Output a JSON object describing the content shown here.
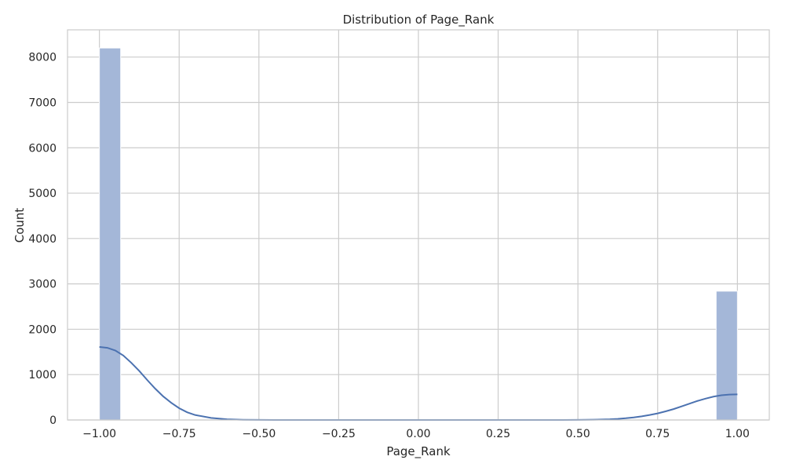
{
  "chart_data": {
    "type": "bar",
    "title": "Distribution of Page_Rank",
    "xlabel": "Page_Rank",
    "ylabel": "Count",
    "xlim": [
      -1.1,
      1.1
    ],
    "ylim": [
      0,
      8600
    ],
    "x_ticks": [
      -1.0,
      -0.75,
      -0.5,
      -0.25,
      0.0,
      0.25,
      0.5,
      0.75,
      1.0
    ],
    "x_tick_labels": [
      "−1.00",
      "−0.75",
      "−0.50",
      "−0.25",
      "0.00",
      "0.25",
      "0.50",
      "0.75",
      "1.00"
    ],
    "y_ticks": [
      0,
      1000,
      2000,
      3000,
      4000,
      5000,
      6000,
      7000,
      8000
    ],
    "y_tick_labels": [
      "0",
      "1000",
      "2000",
      "3000",
      "4000",
      "5000",
      "6000",
      "7000",
      "8000"
    ],
    "bins": [
      {
        "x0": -1.0,
        "x1": -0.9333,
        "count": 8200
      },
      {
        "x0": 0.9333,
        "x1": 1.0,
        "count": 2840
      }
    ],
    "kde": {
      "x": [
        -1.0,
        -0.975,
        -0.95,
        -0.925,
        -0.9,
        -0.875,
        -0.85,
        -0.825,
        -0.8,
        -0.775,
        -0.75,
        -0.725,
        -0.7,
        -0.65,
        -0.6,
        -0.55,
        -0.5,
        -0.45,
        -0.4,
        0.4,
        0.45,
        0.5,
        0.55,
        0.6,
        0.625,
        0.65,
        0.675,
        0.7,
        0.725,
        0.75,
        0.775,
        0.8,
        0.825,
        0.85,
        0.875,
        0.9,
        0.925,
        0.95,
        0.975,
        1.0
      ],
      "y": [
        1610,
        1590,
        1530,
        1420,
        1260,
        1080,
        880,
        690,
        520,
        380,
        260,
        170,
        110,
        45,
        15,
        5,
        2,
        0,
        0,
        0,
        0,
        2,
        6,
        15,
        24,
        38,
        56,
        80,
        110,
        145,
        190,
        240,
        300,
        360,
        420,
        470,
        515,
        545,
        560,
        565
      ]
    },
    "colors": {
      "bar_fill": "#a4b7d8",
      "bar_stroke": "#ffffff",
      "kde_line": "#4c72b0",
      "grid": "#cccccc",
      "frame": "#cccccc",
      "text": "#262626"
    },
    "grid": true,
    "legend": "none"
  }
}
